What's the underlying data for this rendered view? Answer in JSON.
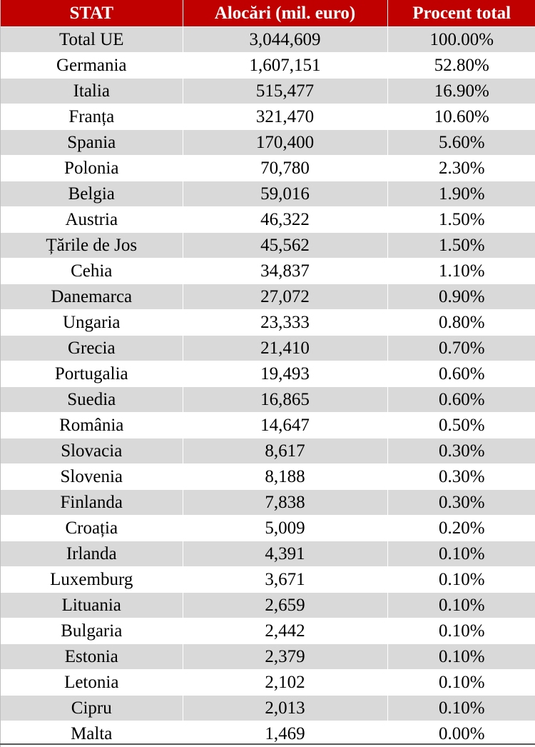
{
  "table": {
    "headers": [
      "STAT",
      "Alocări (mil. euro)",
      "Procent total"
    ],
    "colors": {
      "header_bg": "#c00000",
      "header_text": "#ffffff",
      "shaded_row": "#d9d9d9",
      "plain_row": "#ffffff"
    },
    "rows": [
      [
        "Total UE",
        "3,044,609",
        "100.00%"
      ],
      [
        "Germania",
        "1,607,151",
        "52.80%"
      ],
      [
        "Italia",
        "515,477",
        "16.90%"
      ],
      [
        "Franța",
        "321,470",
        "10.60%"
      ],
      [
        "Spania",
        "170,400",
        "5.60%"
      ],
      [
        "Polonia",
        "70,780",
        "2.30%"
      ],
      [
        "Belgia",
        "59,016",
        "1.90%"
      ],
      [
        "Austria",
        "46,322",
        "1.50%"
      ],
      [
        "Țările de Jos",
        "45,562",
        "1.50%"
      ],
      [
        "Cehia",
        "34,837",
        "1.10%"
      ],
      [
        "Danemarca",
        "27,072",
        "0.90%"
      ],
      [
        "Ungaria",
        "23,333",
        "0.80%"
      ],
      [
        "Grecia",
        "21,410",
        "0.70%"
      ],
      [
        "Portugalia",
        "19,493",
        "0.60%"
      ],
      [
        "Suedia",
        "16,865",
        "0.60%"
      ],
      [
        "România",
        "14,647",
        "0.50%"
      ],
      [
        "Slovacia",
        "8,617",
        "0.30%"
      ],
      [
        "Slovenia",
        "8,188",
        "0.30%"
      ],
      [
        "Finlanda",
        "7,838",
        "0.30%"
      ],
      [
        "Croația",
        "5,009",
        "0.20%"
      ],
      [
        "Irlanda",
        "4,391",
        "0.10%"
      ],
      [
        "Luxemburg",
        "3,671",
        "0.10%"
      ],
      [
        "Lituania",
        "2,659",
        "0.10%"
      ],
      [
        "Bulgaria",
        "2,442",
        "0.10%"
      ],
      [
        "Estonia",
        "2,379",
        "0.10%"
      ],
      [
        "Letonia",
        "2,102",
        "0.10%"
      ],
      [
        "Cipru",
        "2,013",
        "0.10%"
      ],
      [
        "Malta",
        "1,469",
        "0.00%"
      ]
    ]
  }
}
